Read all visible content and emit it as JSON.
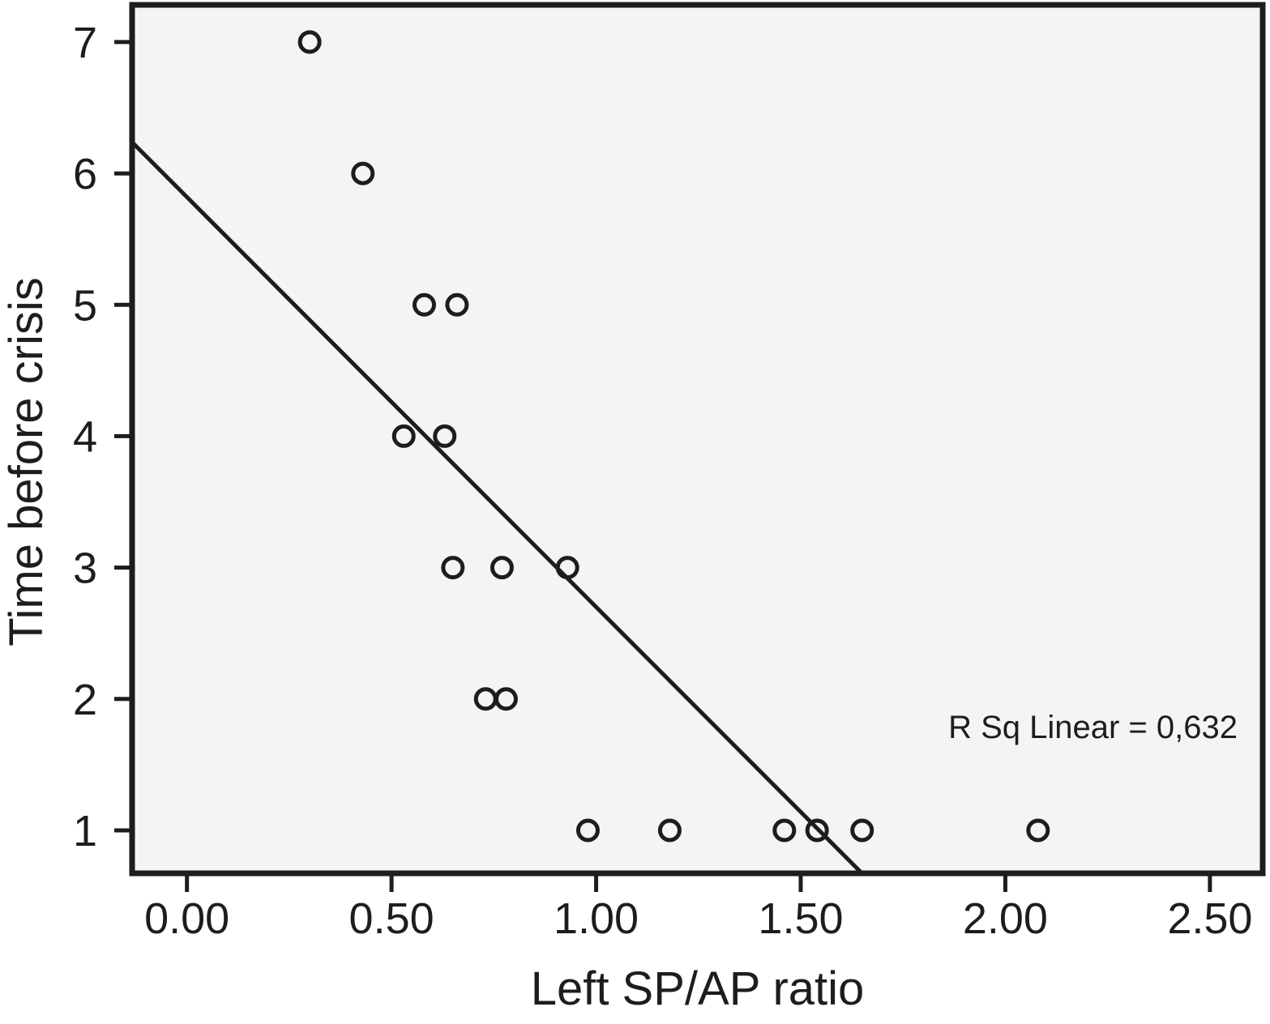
{
  "chart_data": {
    "type": "scatter",
    "title": "",
    "xlabel": "Left SP/AP ratio",
    "ylabel": "Time before crisis",
    "annotation": "R Sq Linear = 0,632",
    "marker": "open-circle",
    "grid": false,
    "legend": null,
    "xlim": [
      -0.134,
      2.629
    ],
    "ylim": [
      0.673,
      7.283
    ],
    "xticks": [
      {
        "value": 0.0,
        "label": "0.00"
      },
      {
        "value": 0.5,
        "label": "0.50"
      },
      {
        "value": 1.0,
        "label": "1.00"
      },
      {
        "value": 1.5,
        "label": "1.50"
      },
      {
        "value": 2.0,
        "label": "2.00"
      },
      {
        "value": 2.5,
        "label": "2.50"
      }
    ],
    "yticks": [
      {
        "value": 1,
        "label": "1"
      },
      {
        "value": 2,
        "label": "2"
      },
      {
        "value": 3,
        "label": "3"
      },
      {
        "value": 4,
        "label": "4"
      },
      {
        "value": 5,
        "label": "5"
      },
      {
        "value": 6,
        "label": "6"
      },
      {
        "value": 7,
        "label": "7"
      }
    ],
    "points": [
      {
        "x": 0.3,
        "y": 7
      },
      {
        "x": 0.43,
        "y": 6
      },
      {
        "x": 0.58,
        "y": 5
      },
      {
        "x": 0.66,
        "y": 5
      },
      {
        "x": 0.53,
        "y": 4
      },
      {
        "x": 0.63,
        "y": 4
      },
      {
        "x": 0.65,
        "y": 3
      },
      {
        "x": 0.77,
        "y": 3
      },
      {
        "x": 0.93,
        "y": 3
      },
      {
        "x": 0.73,
        "y": 2
      },
      {
        "x": 0.78,
        "y": 2
      },
      {
        "x": 0.98,
        "y": 1
      },
      {
        "x": 1.18,
        "y": 1
      },
      {
        "x": 1.46,
        "y": 1
      },
      {
        "x": 1.54,
        "y": 1
      },
      {
        "x": 1.65,
        "y": 1
      },
      {
        "x": 2.08,
        "y": 1
      }
    ],
    "trendline": {
      "slope": -3.12,
      "intercept": 5.82,
      "x_start": -0.134,
      "x_end": 1.649
    },
    "colors": {
      "ink": "#1d1d1d",
      "plot_bg": "#f5f4f4",
      "page_bg": "#ffffff"
    }
  }
}
